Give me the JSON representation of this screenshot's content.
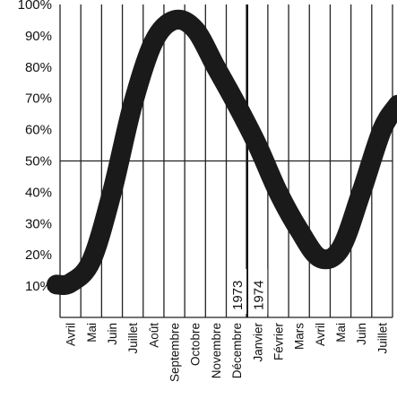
{
  "chart_data": {
    "type": "line",
    "title": "",
    "xlabel": "",
    "ylabel": "",
    "ylim": [
      0,
      100
    ],
    "grid": true,
    "y_ticks": [
      "10%",
      "20%",
      "30%",
      "40%",
      "50%",
      "60%",
      "70%",
      "80%",
      "90%",
      "100%"
    ],
    "categories": [
      "Avril",
      "Mai",
      "Juin",
      "Juillet",
      "Août",
      "Septembre",
      "Octobre",
      "Novembre",
      "Décembre",
      "Janvier",
      "Février",
      "Mars",
      "Avril",
      "Mai",
      "Juin",
      "Juillet"
    ],
    "year_labels": [
      "1973",
      "1974"
    ],
    "series": [
      {
        "values": [
          11,
          18,
          40,
          68,
          88,
          95,
          92,
          80,
          68,
          55,
          40,
          28,
          19,
          22,
          40,
          60
        ]
      }
    ]
  }
}
